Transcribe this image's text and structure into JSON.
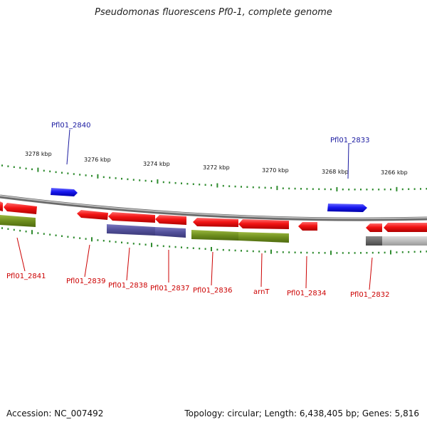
{
  "title": "Pseudomonas fluorescens Pf0-1, complete genome",
  "footer": {
    "accession": "Accession: NC_007492",
    "summary": "Topology: circular; Length: 6,438,405 bp; Genes: 5,816"
  },
  "colors": {
    "backbone": "#8a8a8a",
    "tick": "#2e8b2e",
    "forward_gene": "#1f1fe8",
    "reverse_gene": "#e81010",
    "cds_green": "#6e8e1e",
    "cds_purple": "#52509a",
    "cds_grey": "#b8b8b8",
    "label_blue": "#1a1aa0",
    "label_red": "#cc0000"
  },
  "scale_labels": [
    "3278 kbp",
    "3276 kbp",
    "3274 kbp",
    "3272 kbp",
    "3270 kbp",
    "3268 kbp",
    "3266 kbp"
  ],
  "gene_labels": {
    "top": [
      "Pfl01_2840",
      "Pfl01_2833"
    ],
    "bottom": [
      "Pfl01_2841",
      "Pfl01_2839",
      "Pfl01_2838",
      "Pfl01_2837",
      "Pfl01_2836",
      "arnT",
      "Pfl01_2834",
      "Pfl01_2832"
    ]
  }
}
